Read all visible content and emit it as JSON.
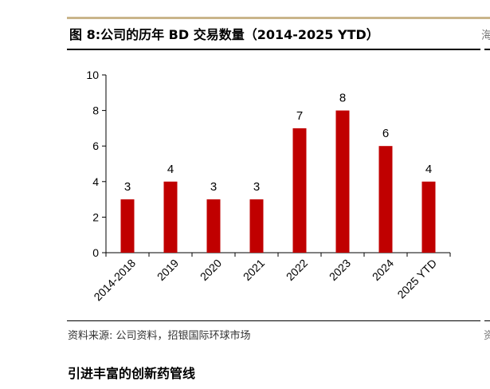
{
  "figure": {
    "title": "图 8:公司的历年 BD 交易数量（2014-2025 YTD）",
    "source": "资料来源: 公司资料，招银国际环球市场",
    "right_edge_fragment_top": "海",
    "right_edge_fragment_bottom": "资"
  },
  "section_heading": "引进丰富的创新药管线",
  "colors": {
    "bar": "#c00000",
    "axis": "#000000",
    "top_rule": "#c9b58a"
  },
  "chart_data": {
    "type": "bar",
    "title": "",
    "xlabel": "",
    "ylabel": "",
    "categories": [
      "2014-2018",
      "2019",
      "2020",
      "2021",
      "2022",
      "2023",
      "2024",
      "2025 YTD"
    ],
    "values": [
      3,
      4,
      3,
      3,
      7,
      8,
      6,
      4
    ],
    "data_labels": [
      "3",
      "4",
      "3",
      "3",
      "7",
      "8",
      "6",
      "4"
    ],
    "ylim": [
      0,
      10
    ],
    "yticks": [
      0,
      2,
      4,
      6,
      8,
      10
    ],
    "ytick_labels": [
      "0",
      "2",
      "4",
      "6",
      "8",
      "10"
    ],
    "grid": false,
    "legend": "none"
  }
}
